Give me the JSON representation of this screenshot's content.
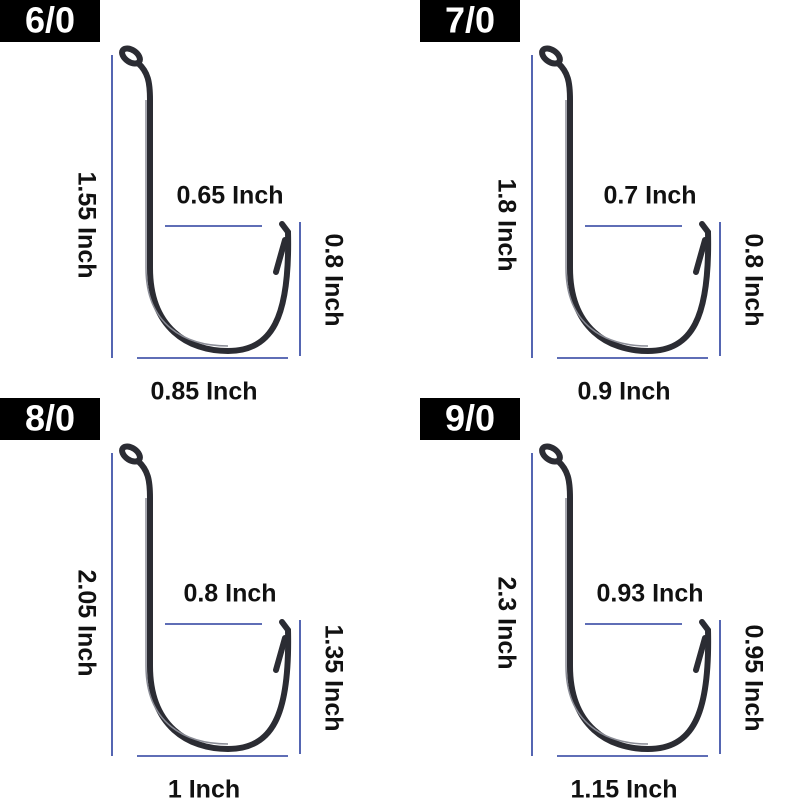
{
  "hooks": [
    {
      "size": "6/0",
      "length": "1.55 Inch",
      "gap": "0.65 Inch",
      "bend_height": "0.8 Inch",
      "width": "0.85 Inch"
    },
    {
      "size": "7/0",
      "length": "1.8 Inch",
      "gap": "0.7 Inch",
      "bend_height": "0.8 Inch",
      "width": "0.9 Inch"
    },
    {
      "size": "8/0",
      "length": "2.05 Inch",
      "gap": "0.8 Inch",
      "bend_height": "1.35 Inch",
      "width": "1 Inch"
    },
    {
      "size": "9/0",
      "length": "2.3 Inch",
      "gap": "0.93 Inch",
      "bend_height": "0.95 Inch",
      "width": "1.15 Inch"
    }
  ]
}
